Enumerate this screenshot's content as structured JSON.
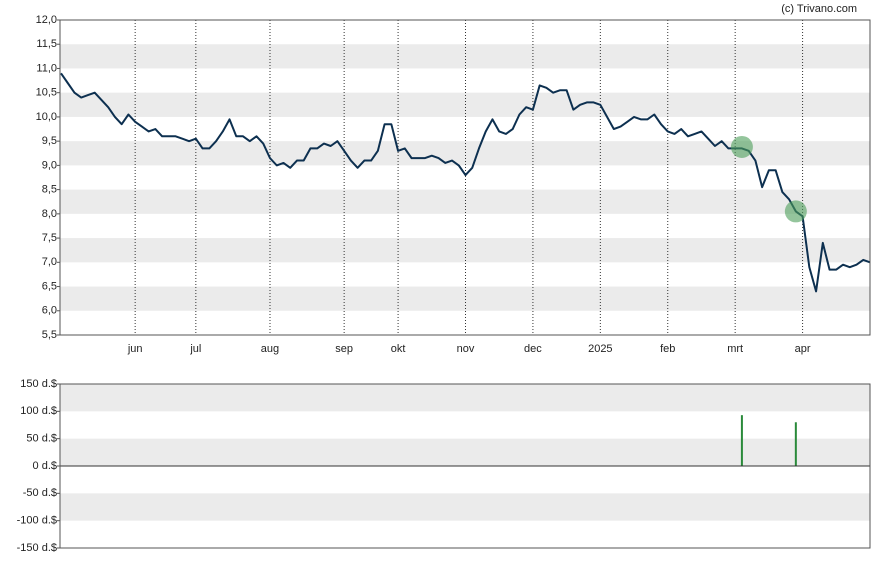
{
  "source": "(c) Trivano.com",
  "chart_data": [
    {
      "type": "line",
      "categories": [
        null,
        null,
        null,
        null,
        null,
        null,
        null,
        null,
        null,
        null,
        null,
        "jun",
        null,
        null,
        null,
        null,
        null,
        null,
        null,
        null,
        "jul",
        null,
        null,
        null,
        null,
        null,
        null,
        null,
        null,
        null,
        null,
        "aug",
        null,
        null,
        null,
        null,
        null,
        null,
        null,
        null,
        null,
        null,
        "sep",
        null,
        null,
        null,
        null,
        null,
        null,
        null,
        "okt",
        null,
        null,
        null,
        null,
        null,
        null,
        null,
        null,
        null,
        "nov",
        null,
        null,
        null,
        null,
        null,
        null,
        null,
        null,
        null,
        "dec",
        null,
        null,
        null,
        null,
        null,
        null,
        null,
        null,
        null,
        "2025",
        null,
        null,
        null,
        null,
        null,
        null,
        null,
        null,
        null,
        "feb",
        null,
        null,
        null,
        null,
        null,
        null,
        null,
        null,
        null,
        "mrt",
        null,
        null,
        null,
        null,
        null,
        null,
        null,
        null,
        null,
        "apr",
        null,
        null,
        null,
        null,
        null,
        null,
        null,
        null,
        null,
        null
      ],
      "series": [
        {
          "color": "#0d3050",
          "values": [
            10.9,
            10.7,
            10.5,
            10.4,
            10.45,
            10.5,
            10.35,
            10.2,
            10.0,
            9.85,
            10.05,
            9.9,
            9.8,
            9.7,
            9.75,
            9.6,
            9.6,
            9.6,
            9.55,
            9.5,
            9.55,
            9.35,
            9.35,
            9.5,
            9.7,
            9.95,
            9.6,
            9.6,
            9.5,
            9.6,
            9.45,
            9.15,
            9.0,
            9.05,
            8.95,
            9.1,
            9.1,
            9.35,
            9.35,
            9.45,
            9.4,
            9.5,
            9.3,
            9.1,
            8.95,
            9.1,
            9.1,
            9.3,
            9.85,
            9.85,
            9.3,
            9.35,
            9.15,
            9.15,
            9.15,
            9.2,
            9.15,
            9.05,
            9.1,
            9.0,
            8.8,
            8.95,
            9.35,
            9.7,
            9.95,
            9.7,
            9.65,
            9.75,
            10.05,
            10.2,
            10.15,
            10.65,
            10.6,
            10.5,
            10.55,
            10.55,
            10.15,
            10.25,
            10.3,
            10.3,
            10.25,
            10.0,
            9.75,
            9.8,
            9.9,
            10.0,
            9.95,
            9.95,
            10.05,
            9.85,
            9.7,
            9.65,
            9.75,
            9.6,
            9.65,
            9.7,
            9.55,
            9.4,
            9.5,
            9.35,
            9.35,
            9.35,
            9.3,
            9.1,
            8.55,
            8.9,
            8.9,
            8.45,
            8.3,
            8.05,
            7.95,
            6.9,
            6.4,
            7.4,
            6.85,
            6.85,
            6.95,
            6.9,
            6.95,
            7.05,
            7.0
          ]
        }
      ],
      "markers": {
        "color": "#4c9f5a",
        "values": [
          null,
          null,
          null,
          null,
          null,
          null,
          null,
          null,
          null,
          null,
          null,
          null,
          null,
          null,
          null,
          null,
          null,
          null,
          null,
          null,
          null,
          null,
          null,
          null,
          null,
          null,
          null,
          null,
          null,
          null,
          null,
          null,
          null,
          null,
          null,
          null,
          null,
          null,
          null,
          null,
          null,
          null,
          null,
          null,
          null,
          null,
          null,
          null,
          null,
          null,
          null,
          null,
          null,
          null,
          null,
          null,
          null,
          null,
          null,
          null,
          null,
          null,
          null,
          null,
          null,
          null,
          null,
          null,
          null,
          null,
          null,
          null,
          null,
          null,
          null,
          null,
          null,
          null,
          null,
          null,
          null,
          null,
          null,
          null,
          null,
          null,
          null,
          null,
          null,
          null,
          null,
          null,
          null,
          null,
          null,
          null,
          null,
          null,
          null,
          null,
          null,
          9.38,
          null,
          null,
          null,
          null,
          null,
          null,
          null,
          8.05,
          null,
          null,
          null,
          null,
          null,
          null,
          null,
          null,
          null,
          null,
          null
        ]
      },
      "ylim": [
        5.5,
        12
      ],
      "yticks": [
        {
          "value": 5.5,
          "label": "5,5"
        },
        {
          "value": 6,
          "label": "6,0"
        },
        {
          "value": 6.5,
          "label": "6,5"
        },
        {
          "value": 7,
          "label": "7,0"
        },
        {
          "value": 7.5,
          "label": "7,5"
        },
        {
          "value": 8,
          "label": "8,0"
        },
        {
          "value": 8.5,
          "label": "8,5"
        },
        {
          "value": 9,
          "label": "9,0"
        },
        {
          "value": 9.5,
          "label": "9,5"
        },
        {
          "value": 10,
          "label": "10,0"
        },
        {
          "value": 10.5,
          "label": "10,5"
        },
        {
          "value": 11,
          "label": "11,0"
        },
        {
          "value": 11.5,
          "label": "11,5"
        },
        {
          "value": 12,
          "label": "12,0"
        }
      ]
    },
    {
      "type": "bar",
      "color": "#2a8a3a",
      "values": [
        null,
        null,
        null,
        null,
        null,
        null,
        null,
        null,
        null,
        null,
        null,
        null,
        null,
        null,
        null,
        null,
        null,
        null,
        null,
        null,
        null,
        null,
        null,
        null,
        null,
        null,
        null,
        null,
        null,
        null,
        null,
        null,
        null,
        null,
        null,
        null,
        null,
        null,
        null,
        null,
        null,
        null,
        null,
        null,
        null,
        null,
        null,
        null,
        null,
        null,
        null,
        null,
        null,
        null,
        null,
        null,
        null,
        null,
        null,
        null,
        null,
        null,
        null,
        null,
        null,
        null,
        null,
        null,
        null,
        null,
        null,
        null,
        null,
        null,
        null,
        null,
        null,
        null,
        null,
        null,
        null,
        null,
        null,
        null,
        null,
        null,
        null,
        null,
        null,
        null,
        null,
        null,
        null,
        null,
        null,
        null,
        null,
        null,
        null,
        null,
        null,
        93,
        null,
        null,
        null,
        null,
        null,
        null,
        null,
        80,
        null,
        null,
        null,
        null,
        null,
        null,
        null,
        null,
        null,
        null,
        null
      ],
      "ylim": [
        -150,
        150
      ],
      "yticks": [
        {
          "value": -150,
          "label": "-150 d.$"
        },
        {
          "value": -100,
          "label": "-100 d.$"
        },
        {
          "value": -50,
          "label": "-50 d.$"
        },
        {
          "value": 0,
          "label": "0 d.$"
        },
        {
          "value": 50,
          "label": "50 d.$"
        },
        {
          "value": 100,
          "label": "100 d.$"
        },
        {
          "value": 150,
          "label": "150 d.$"
        }
      ]
    }
  ]
}
